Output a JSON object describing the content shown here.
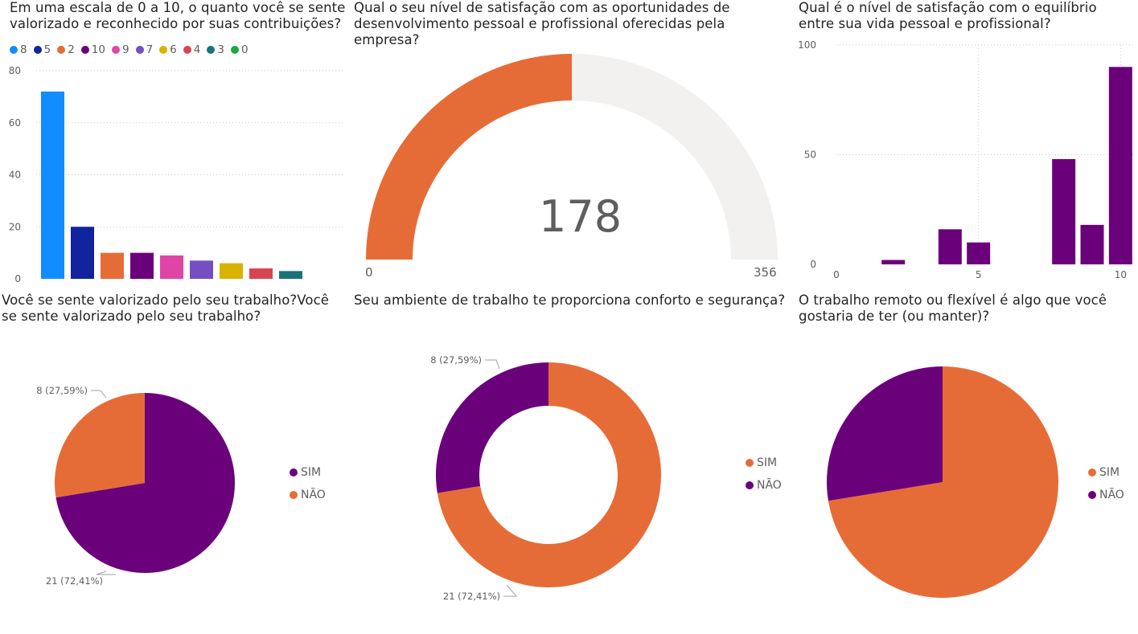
{
  "colors": {
    "orange": "#e66c37",
    "purple": "#6b007b",
    "gauge_bg": "#f2f1f0",
    "grid": "#c8c6c4",
    "axis_text": "#605e5c"
  },
  "chart_data": [
    {
      "id": "valorizado_escala",
      "type": "bar",
      "title": "Em uma escala de 0 a 10, o quanto você se sente valorizado e reconhecido por suas contribuições?",
      "categories": [
        "8",
        "5",
        "2",
        "10",
        "9",
        "7",
        "6",
        "4",
        "3",
        "0"
      ],
      "values": [
        72,
        20,
        10,
        10,
        9,
        7,
        6,
        4,
        3,
        0
      ],
      "colors": [
        "#118dff",
        "#12239e",
        "#e66c37",
        "#6b007b",
        "#e044a7",
        "#744ec2",
        "#d9b300",
        "#d64550",
        "#197278",
        "#1aab40"
      ],
      "legend": [
        "8",
        "5",
        "2",
        "10",
        "9",
        "7",
        "6",
        "4",
        "3",
        "0"
      ],
      "legend_position": "top-left",
      "yticks": [
        "0",
        "20",
        "40",
        "60",
        "80"
      ],
      "ylim": [
        0,
        80
      ],
      "grid": true
    },
    {
      "id": "desenvolvimento",
      "type": "gauge",
      "title": "Qual o seu nível de satisfação com as oportunidades de desenvolvimento pessoal e profissional oferecidas pela empresa?",
      "value": 178,
      "min": 0,
      "max": 356,
      "value_label": "178",
      "min_label": "0",
      "max_label": "356"
    },
    {
      "id": "equilibrio",
      "type": "bar",
      "title": "Qual é o nível de satisfação com o equilíbrio entre sua vida pessoal e profissional?",
      "x": [
        2,
        4,
        5,
        8,
        9,
        10
      ],
      "values": [
        2,
        16,
        10,
        48,
        18,
        90
      ],
      "xlim": [
        0,
        10.5
      ],
      "ylim": [
        0,
        100
      ],
      "xticks": [
        "0",
        "5",
        "10"
      ],
      "yticks": [
        "0",
        "50",
        "100"
      ],
      "grid": true
    },
    {
      "id": "valorizado_trabalho",
      "type": "pie",
      "title": "Você se sente valorizado pelo seu trabalho?Você se sente valorizado pelo seu trabalho?",
      "slices": [
        {
          "label": "SIM",
          "value": 21,
          "data_label": "21 (72,41%)"
        },
        {
          "label": "NÃO",
          "value": 8,
          "data_label": "8 (27,59%)"
        }
      ],
      "legend": [
        "SIM",
        "NÃO"
      ],
      "legend_position": "right"
    },
    {
      "id": "conforto_seguranca",
      "type": "donut",
      "title": "Seu ambiente de trabalho te proporciona conforto e segurança?",
      "slices": [
        {
          "label": "SIM",
          "value": 21,
          "data_label": "21 (72,41%)"
        },
        {
          "label": "NÃO",
          "value": 8,
          "data_label": "8 (27,59%)"
        }
      ],
      "legend": [
        "SIM",
        "NÃO"
      ],
      "legend_position": "right"
    },
    {
      "id": "trabalho_remoto",
      "type": "pie",
      "title": "O trabalho remoto ou flexível é algo que você gostaria de ter (ou manter)?",
      "slices": [
        {
          "label": "SIM",
          "value": 21
        },
        {
          "label": "NÃO",
          "value": 8
        }
      ],
      "legend": [
        "SIM",
        "NÃO"
      ],
      "legend_position": "right"
    }
  ]
}
